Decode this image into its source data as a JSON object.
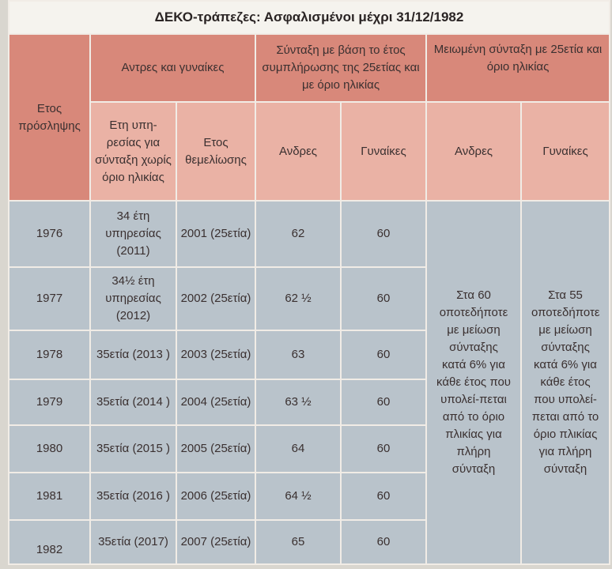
{
  "title": "ΔΕΚΟ-τράπεζες: Ασφαλισμένοι μέχρι 31/12/1982",
  "headers": {
    "year_hired": "Ετος πρόσληψης",
    "men_women": "Αντρες και γυναίκες",
    "pension_25": "Σύνταξη με βάση το έτος συμπλήρωσης της 25ετίας και με όριο ηλικίας",
    "reduced": "Μειωμένη σύνταξη με 25ετία και όριο ηλικίας",
    "years_service": "Ετη υπη-ρεσίας για σύνταξη χωρίς όριο ηλικίας",
    "year_entitlement": "Ετος θεμελίωσης",
    "men": "Ανδρες",
    "women": "Γυναίκες",
    "men2": "Ανδρες",
    "women2": "Γυναίκες"
  },
  "rows": [
    {
      "year": "1976",
      "service": "34 έτη υπηρεσίας (2011)",
      "entitle": "2001 (25ετία)",
      "men": "62",
      "women": "60"
    },
    {
      "year": "1977",
      "service": "34½ έτη υπηρεσίας (2012)",
      "entitle": "2002 (25ετία)",
      "men": "62 ½",
      "women": "60"
    },
    {
      "year": "1978",
      "service": "35ετία (2013 )",
      "entitle": "2003 (25ετία)",
      "men": "63",
      "women": "60"
    },
    {
      "year": "1979",
      "service": "35ετία (2014 )",
      "entitle": "2004 (25ετία)",
      "men": "63 ½",
      "women": "60"
    },
    {
      "year": "1980",
      "service": "35ετία (2015 )",
      "entitle": "2005 (25ετία)",
      "men": "64",
      "women": "60"
    },
    {
      "year": "1981",
      "service": "35ετία (2016 )",
      "entitle": "2006 (25ετία)",
      "men": "64 ½",
      "women": "60"
    },
    {
      "year": "1982",
      "service": "35ετία (2017)",
      "entitle": "2007 (25ετία)",
      "men": "65",
      "women": "60"
    }
  ],
  "reduced_men": "Στα 60 οποτεδήποτε με μείωση σύνταξης κατά 6% για κάθε έτος που υπολεί-πεται από το όριο πλικίας για πλήρη σύνταξη",
  "reduced_women": "Στα 55 οποτεδήποτε με μείωση σύνταξης κατά 6% για κάθε έτος που υπολεί-πεται από το όριο πλικίας για πλήρη σύνταξη"
}
